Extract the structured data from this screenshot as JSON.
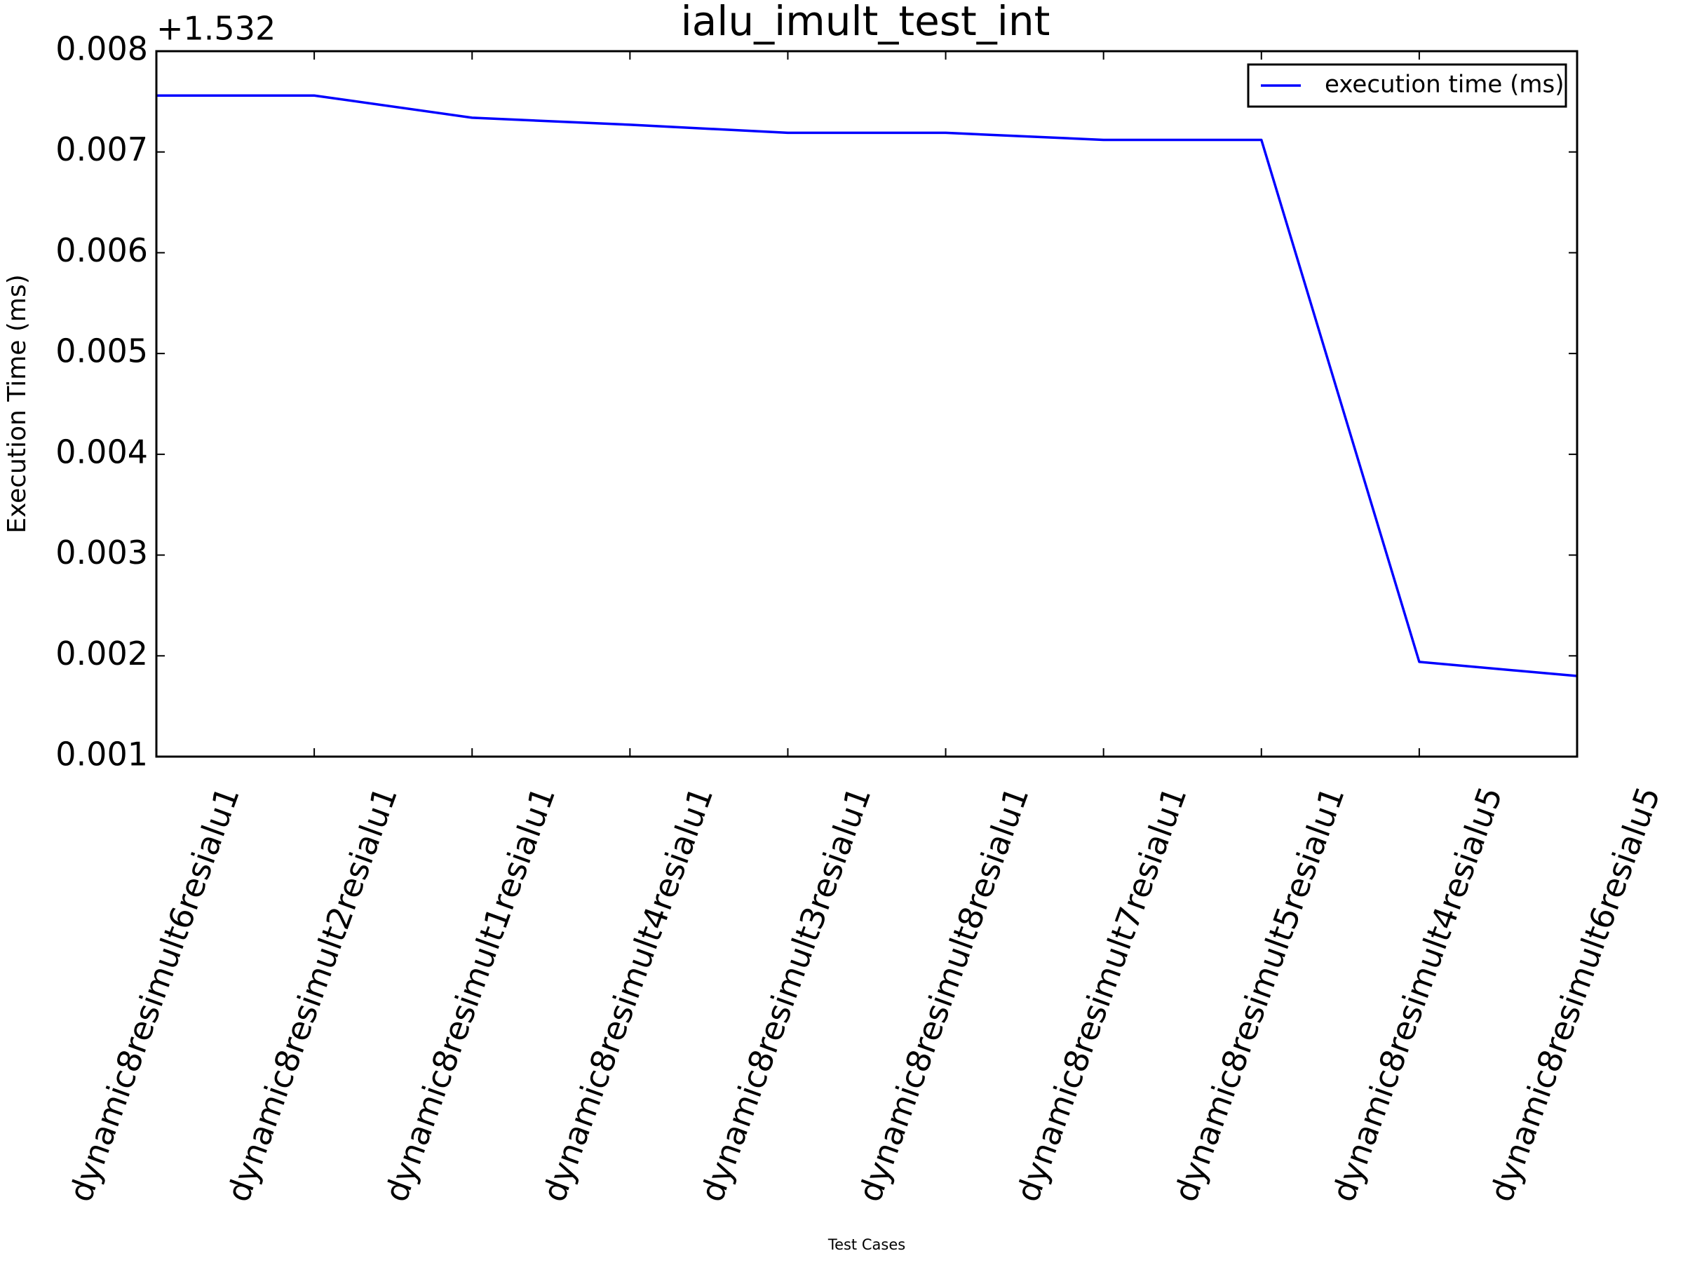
{
  "chart_data": {
    "type": "line",
    "title": "ialu_imult_test_int",
    "x_label": "Test Cases",
    "y_label": "Execution Time (ms)",
    "y_offset_text": "+1.532",
    "categories": [
      "dynamic8resimult6resialu1",
      "dynamic8resimult2resialu1",
      "dynamic8resimult1resialu1",
      "dynamic8resimult4resialu1",
      "dynamic8resimult3resialu1",
      "dynamic8resimult8resialu1",
      "dynamic8resimult7resialu1",
      "dynamic8resimult5resialu1",
      "dynamic8resimult4resialu5",
      "dynamic8resimult6resialu5"
    ],
    "series": [
      {
        "name": "execution time (ms)",
        "color": "#0000ff",
        "values": [
          0.00756,
          0.00756,
          0.00734,
          0.00727,
          0.00719,
          0.00719,
          0.00712,
          0.00712,
          0.00194,
          0.0018
        ]
      }
    ],
    "ylim": [
      0.001,
      0.008
    ],
    "yticks": [
      0.001,
      0.002,
      0.003,
      0.004,
      0.005,
      0.006,
      0.007,
      0.008
    ],
    "legend": "upper right",
    "grid": false
  }
}
